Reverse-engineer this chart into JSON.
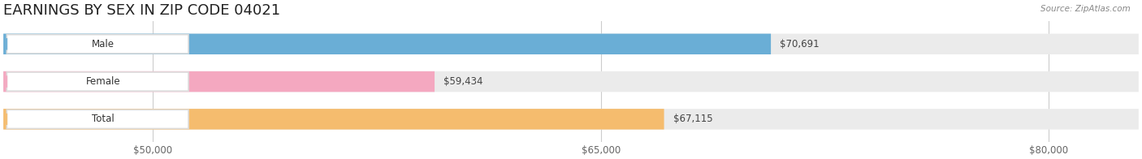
{
  "title": "EARNINGS BY SEX IN ZIP CODE 04021",
  "source": "Source: ZipAtlas.com",
  "categories": [
    "Male",
    "Female",
    "Total"
  ],
  "values": [
    70691,
    59434,
    67115
  ],
  "bar_colors": [
    "#6aaed6",
    "#f4a8c0",
    "#f5bc6e"
  ],
  "label_colors": [
    "#6aaed6",
    "#f4a8c0",
    "#f5bc6e"
  ],
  "bar_bg_color": "#ebebeb",
  "value_labels": [
    "$70,691",
    "$59,434",
    "$67,115"
  ],
  "xlim_min": 45000,
  "xlim_max": 83000,
  "xticks": [
    50000,
    65000,
    80000
  ],
  "xtick_labels": [
    "$50,000",
    "$65,000",
    "$80,000"
  ],
  "title_fontsize": 13,
  "bar_height": 0.55,
  "figsize": [
    14.06,
    1.96
  ],
  "dpi": 100
}
